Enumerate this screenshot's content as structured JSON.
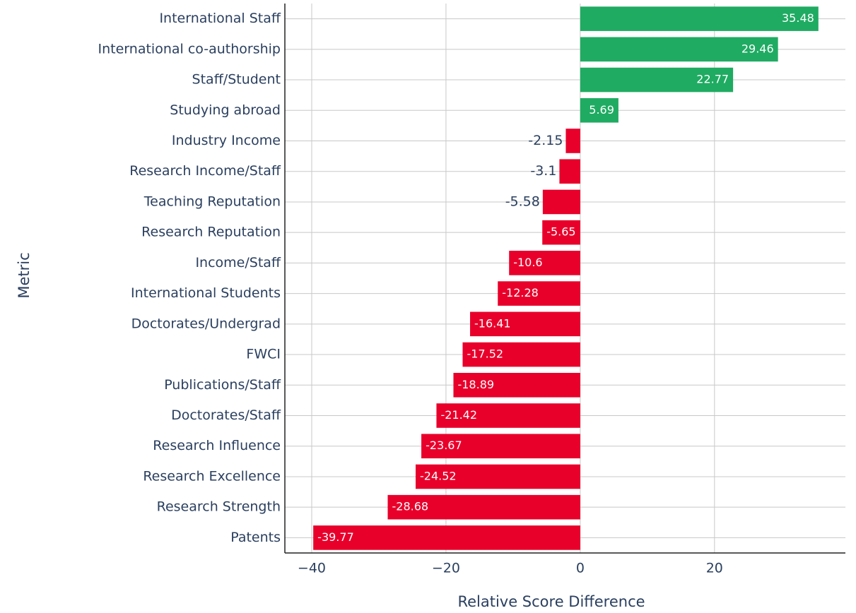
{
  "chart_data": {
    "type": "hbar",
    "xlabel": "Relative Score Difference",
    "ylabel": "Metric",
    "categories": [
      "International Staff",
      "International co-authorship",
      "Staff/Student",
      "Studying abroad",
      "Industry Income",
      "Research Income/Staff",
      "Teaching Reputation",
      "Research Reputation",
      "Income/Staff",
      "International Students",
      "Doctorates/Undergrad",
      "FWCI",
      "Publications/Staff",
      "Doctorates/Staff",
      "Research Influence",
      "Research Excellence",
      "Research Strength",
      "Patents"
    ],
    "values": [
      35.48,
      29.46,
      22.77,
      5.69,
      -2.15,
      -3.1,
      -5.58,
      -5.65,
      -10.6,
      -12.28,
      -16.41,
      -17.52,
      -18.89,
      -21.42,
      -23.67,
      -24.52,
      -28.68,
      -39.77
    ],
    "colors": [
      "#1fab62",
      "#1fab62",
      "#1fab62",
      "#1fab62",
      "#e8002b",
      "#e8002b",
      "#e8002b",
      "#e8002b",
      "#e8002b",
      "#e8002b",
      "#e8002b",
      "#e8002b",
      "#e8002b",
      "#e8002b",
      "#e8002b",
      "#e8002b",
      "#e8002b",
      "#e8002b"
    ],
    "xlim": [
      -44,
      39.5
    ],
    "xticks": [
      {
        "value": -40,
        "label": "−40"
      },
      {
        "value": -20,
        "label": "−20"
      },
      0,
      20
    ],
    "grid": true
  }
}
